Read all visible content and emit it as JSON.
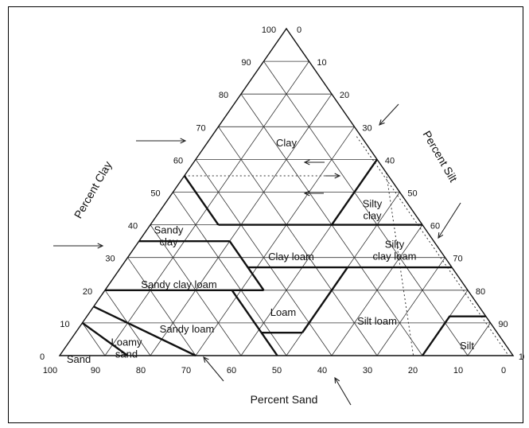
{
  "diagram": {
    "axes": {
      "clay": {
        "title": "Percent Clay",
        "ticks": [
          "0",
          "10",
          "20",
          "30",
          "40",
          "50",
          "60",
          "70",
          "80",
          "90",
          "100"
        ]
      },
      "silt": {
        "title": "Percent Silt",
        "ticks": [
          "0",
          "10",
          "20",
          "30",
          "40",
          "50",
          "60",
          "70",
          "80",
          "90",
          "100"
        ]
      },
      "sand": {
        "title": "Percent Sand",
        "ticks": [
          "100",
          "90",
          "80",
          "70",
          "60",
          "50",
          "40",
          "30",
          "20",
          "10",
          "0"
        ]
      }
    },
    "regions": [
      {
        "lines": [
          "Clay"
        ]
      },
      {
        "lines": [
          "Silty",
          "clay"
        ]
      },
      {
        "lines": [
          "Sandy",
          "clay"
        ]
      },
      {
        "lines": [
          "Clay loam"
        ]
      },
      {
        "lines": [
          "Silty",
          "clay loam"
        ]
      },
      {
        "lines": [
          "Sandy clay loam"
        ]
      },
      {
        "lines": [
          "Loam"
        ]
      },
      {
        "lines": [
          "Sandy loam"
        ]
      },
      {
        "lines": [
          "Silt loam"
        ]
      },
      {
        "lines": [
          "Silt"
        ]
      },
      {
        "lines": [
          "Loamy",
          "sand"
        ]
      },
      {
        "lines": [
          "Sand"
        ]
      }
    ],
    "colors": {
      "ink": "#111111",
      "background": "#ffffff",
      "frame": "#000000"
    }
  }
}
